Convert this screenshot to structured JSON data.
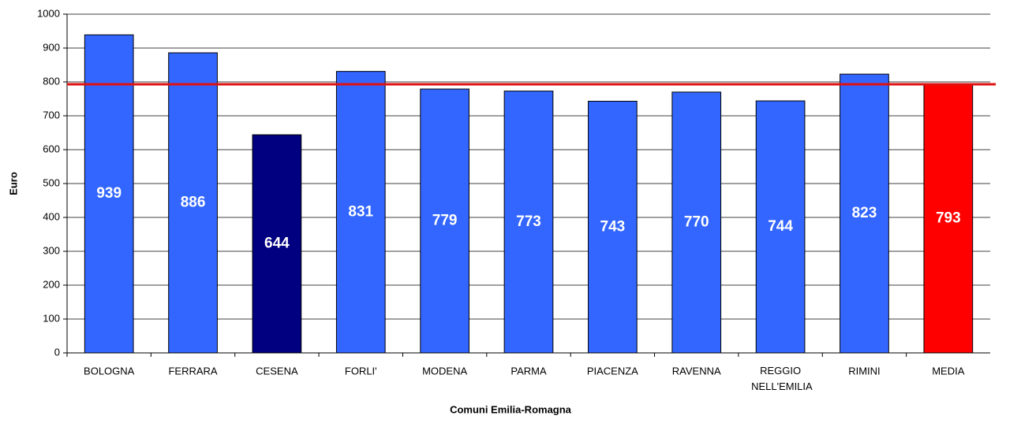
{
  "chart_data": {
    "type": "bar",
    "categories": [
      "BOLOGNA",
      "FERRARA",
      "CESENA",
      "FORLI'",
      "MODENA",
      "PARMA",
      "PIACENZA",
      "RAVENNA",
      "REGGIO NELL'EMILIA",
      "RIMINI",
      "MEDIA"
    ],
    "values": [
      939,
      886,
      644,
      831,
      779,
      773,
      743,
      770,
      744,
      823,
      793
    ],
    "colors": [
      "#3366ff",
      "#3366ff",
      "#000080",
      "#3366ff",
      "#3366ff",
      "#3366ff",
      "#3366ff",
      "#3366ff",
      "#3366ff",
      "#3366ff",
      "#ff0000"
    ],
    "reference_line": "MEDIA",
    "reference_line_color": "#e01010",
    "xlabel": "Comuni Emilia-Romagna",
    "ylabel": "Euro",
    "ylim": [
      0,
      1000
    ],
    "yticks": [
      0,
      100,
      200,
      300,
      400,
      500,
      600,
      700,
      800,
      900,
      1000
    ],
    "grid": true
  }
}
